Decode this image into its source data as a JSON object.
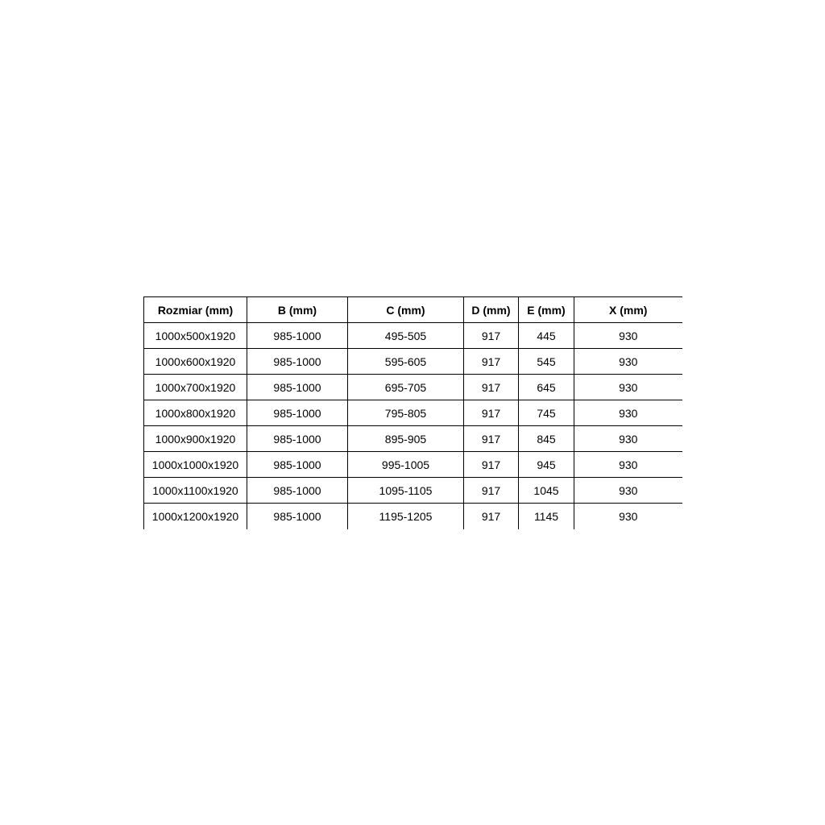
{
  "page": {
    "background": "#ffffff"
  },
  "chart_data": {
    "type": "table",
    "title": "",
    "columns": [
      "Rozmiar (mm)",
      "B (mm)",
      "C (mm)",
      "D (mm)",
      "E (mm)",
      "X (mm)"
    ],
    "rows": [
      [
        "1000x500x1920",
        "985-1000",
        "495-505",
        "917",
        "445",
        "930"
      ],
      [
        "1000x600x1920",
        "985-1000",
        "595-605",
        "917",
        "545",
        "930"
      ],
      [
        "1000x700x1920",
        "985-1000",
        "695-705",
        "917",
        "645",
        "930"
      ],
      [
        "1000x800x1920",
        "985-1000",
        "795-805",
        "917",
        "745",
        "930"
      ],
      [
        "1000x900x1920",
        "985-1000",
        "895-905",
        "917",
        "845",
        "930"
      ],
      [
        "1000x1000x1920",
        "985-1000",
        "995-1005",
        "917",
        "945",
        "930"
      ],
      [
        "1000x1100x1920",
        "985-1000",
        "1095-1105",
        "917",
        "1045",
        "930"
      ],
      [
        "1000x1200x1920",
        "985-1000",
        "1195-1205",
        "917",
        "1145",
        "930"
      ]
    ],
    "layout": {
      "header_bold": true,
      "text_align": "center",
      "border_color": "#000000",
      "text_color": "#000000",
      "grid": "all-inner-lines-plus-top-and-left-outer",
      "missing_edges": [
        "right",
        "bottom"
      ]
    }
  }
}
